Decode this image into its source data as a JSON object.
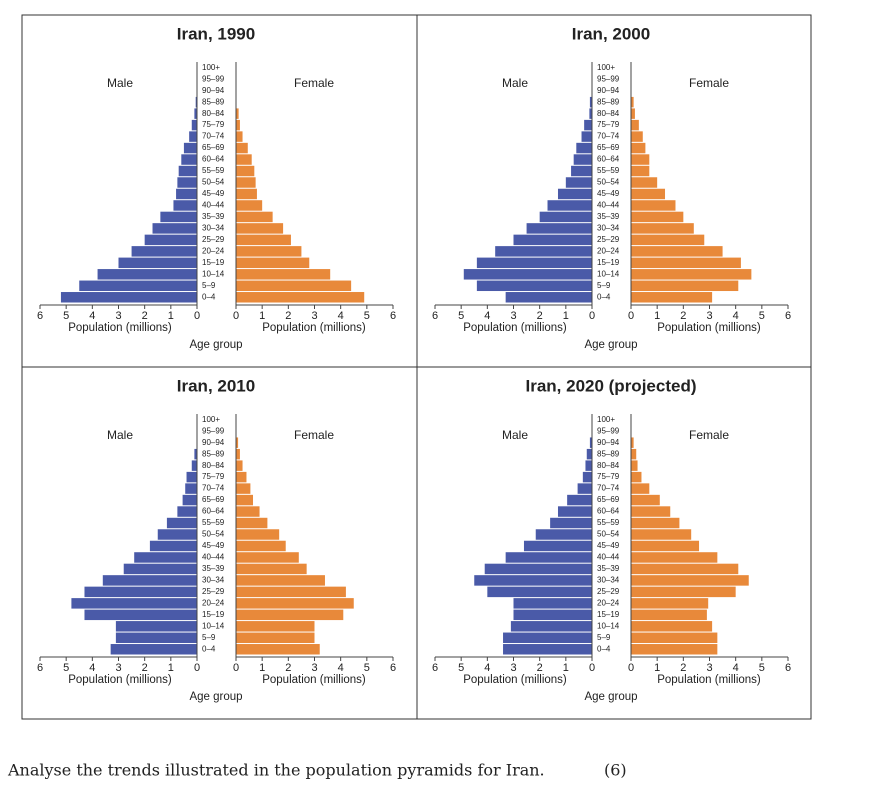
{
  "chart_data": [
    {
      "type": "pyramid",
      "title": "Iran, 1990",
      "x_label": "Population (millions)",
      "y_label": "Age group",
      "categories": [
        "0–4",
        "5–9",
        "10–14",
        "15–19",
        "20–24",
        "25–29",
        "30–34",
        "35–39",
        "40–44",
        "45–49",
        "50–54",
        "55–59",
        "60–64",
        "65–69",
        "70–74",
        "75–79",
        "80–84",
        "85–89",
        "90–94",
        "95–99",
        "100+"
      ],
      "series": [
        {
          "name": "Male",
          "color": "#4a5aa8",
          "values": [
            5.2,
            4.5,
            3.8,
            3.0,
            2.5,
            2.0,
            1.7,
            1.4,
            0.9,
            0.8,
            0.75,
            0.7,
            0.6,
            0.5,
            0.3,
            0.2,
            0.1,
            0.05,
            0,
            0,
            0
          ]
        },
        {
          "name": "Female",
          "color": "#e8893a",
          "values": [
            4.9,
            4.4,
            3.6,
            2.8,
            2.5,
            2.1,
            1.8,
            1.4,
            1.0,
            0.8,
            0.75,
            0.7,
            0.6,
            0.45,
            0.25,
            0.15,
            0.1,
            0,
            0,
            0,
            0
          ]
        }
      ],
      "xlim": [
        0,
        6
      ],
      "xticks": [
        0,
        1,
        2,
        3,
        4,
        5,
        6
      ]
    },
    {
      "type": "pyramid",
      "title": "Iran, 2000",
      "x_label": "Population (millions)",
      "y_label": "Age group",
      "categories": [
        "0–4",
        "5–9",
        "10–14",
        "15–19",
        "20–24",
        "25–29",
        "30–34",
        "35–39",
        "40–44",
        "45–49",
        "50–54",
        "55–59",
        "60–64",
        "65–69",
        "70–74",
        "75–79",
        "80–84",
        "85–89",
        "90–94",
        "95–99",
        "100+"
      ],
      "series": [
        {
          "name": "Male",
          "color": "#4a5aa8",
          "values": [
            3.3,
            4.4,
            4.9,
            4.4,
            3.7,
            3.0,
            2.5,
            2.0,
            1.7,
            1.3,
            1.0,
            0.8,
            0.7,
            0.6,
            0.4,
            0.3,
            0.1,
            0.08,
            0,
            0,
            0
          ]
        },
        {
          "name": "Female",
          "color": "#e8893a",
          "values": [
            3.1,
            4.1,
            4.6,
            4.2,
            3.5,
            2.8,
            2.4,
            2.0,
            1.7,
            1.3,
            1.0,
            0.7,
            0.7,
            0.55,
            0.45,
            0.3,
            0.15,
            0.1,
            0,
            0,
            0
          ]
        }
      ],
      "xlim": [
        0,
        6
      ],
      "xticks": [
        0,
        1,
        2,
        3,
        4,
        5,
        6
      ]
    },
    {
      "type": "pyramid",
      "title": "Iran, 2010",
      "x_label": "Population (millions)",
      "y_label": "Age group",
      "categories": [
        "0–4",
        "5–9",
        "10–14",
        "15–19",
        "20–24",
        "25–29",
        "30–34",
        "35–39",
        "40–44",
        "45–49",
        "50–54",
        "55–59",
        "60–64",
        "65–69",
        "70–74",
        "75–79",
        "80–84",
        "85–89",
        "90–94",
        "95–99",
        "100+"
      ],
      "series": [
        {
          "name": "Male",
          "color": "#4a5aa8",
          "values": [
            3.3,
            3.1,
            3.1,
            4.3,
            4.8,
            4.3,
            3.6,
            2.8,
            2.4,
            1.8,
            1.5,
            1.15,
            0.75,
            0.55,
            0.45,
            0.4,
            0.2,
            0.1,
            0,
            0,
            0
          ]
        },
        {
          "name": "Female",
          "color": "#e8893a",
          "values": [
            3.2,
            3.0,
            3.0,
            4.1,
            4.5,
            4.2,
            3.4,
            2.7,
            2.4,
            1.9,
            1.65,
            1.2,
            0.9,
            0.65,
            0.55,
            0.4,
            0.25,
            0.15,
            0.08,
            0,
            0
          ]
        }
      ],
      "xlim": [
        0,
        6
      ],
      "xticks": [
        0,
        1,
        2,
        3,
        4,
        5,
        6
      ]
    },
    {
      "type": "pyramid",
      "title": "Iran, 2020 (projected)",
      "x_label": "Population (millions)",
      "y_label": "Age group",
      "categories": [
        "0–4",
        "5–9",
        "10–14",
        "15–19",
        "20–24",
        "25–29",
        "30–34",
        "35–39",
        "40–44",
        "45–49",
        "50–54",
        "55–59",
        "60–64",
        "65–69",
        "70–74",
        "75–79",
        "80–84",
        "85–89",
        "90–94",
        "95–99",
        "100+"
      ],
      "series": [
        {
          "name": "Male",
          "color": "#4a5aa8",
          "values": [
            3.4,
            3.4,
            3.1,
            3.0,
            3.0,
            4.0,
            4.5,
            4.1,
            3.3,
            2.6,
            2.15,
            1.6,
            1.3,
            0.95,
            0.55,
            0.35,
            0.25,
            0.2,
            0.08,
            0,
            0
          ]
        },
        {
          "name": "Female",
          "color": "#e8893a",
          "values": [
            3.3,
            3.3,
            3.1,
            2.9,
            2.95,
            4.0,
            4.5,
            4.1,
            3.3,
            2.6,
            2.3,
            1.85,
            1.5,
            1.1,
            0.7,
            0.4,
            0.25,
            0.2,
            0.1,
            0,
            0
          ]
        }
      ],
      "xlim": [
        0,
        6
      ],
      "xticks": [
        0,
        1,
        2,
        3,
        4,
        5,
        6
      ]
    }
  ],
  "question": {
    "text": "Analyse the trends illustrated in the population pyramids for Iran.",
    "marks": "(6)"
  }
}
